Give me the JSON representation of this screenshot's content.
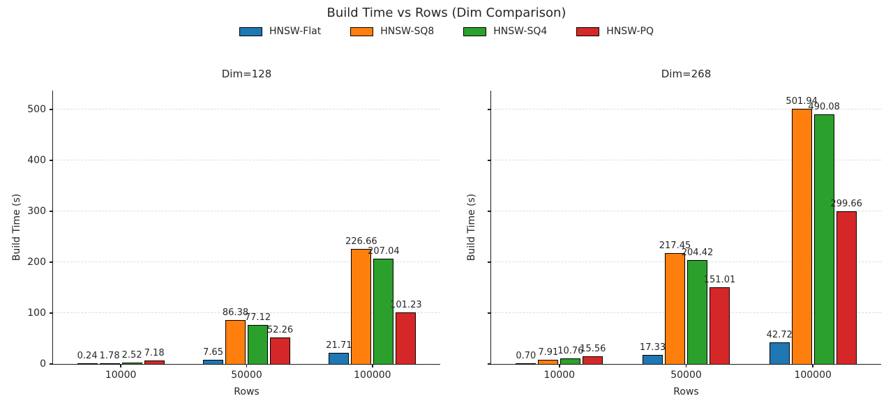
{
  "figure": {
    "title": "Build Time vs Rows (Dim Comparison)",
    "background": "#ffffff"
  },
  "legend": {
    "position": "top-center",
    "entries": [
      {
        "label": "HNSW-Flat",
        "color": "#1f77b4"
      },
      {
        "label": "HNSW-SQ8",
        "color": "#ff7f0e"
      },
      {
        "label": "HNSW-SQ4",
        "color": "#2ca02c"
      },
      {
        "label": "HNSW-PQ",
        "color": "#d62728"
      }
    ]
  },
  "chart_data": [
    {
      "type": "bar",
      "title": "Dim=128",
      "xlabel": "Rows",
      "ylabel": "Build Time (s)",
      "categories": [
        "10000",
        "50000",
        "100000"
      ],
      "series": [
        {
          "name": "HNSW-Flat",
          "color": "#1f77b4",
          "values": [
            0.24,
            7.65,
            21.71
          ]
        },
        {
          "name": "HNSW-SQ8",
          "color": "#ff7f0e",
          "values": [
            1.78,
            86.38,
            226.66
          ]
        },
        {
          "name": "HNSW-SQ4",
          "color": "#2ca02c",
          "values": [
            2.52,
            77.12,
            207.04
          ]
        },
        {
          "name": "HNSW-PQ",
          "color": "#d62728",
          "values": [
            7.18,
            52.26,
            101.23
          ]
        }
      ],
      "yticks": [
        0,
        100,
        200,
        300,
        400,
        500
      ],
      "ylim": [
        0,
        537
      ],
      "grid": "horizontal-dashed",
      "bar_value_labels": true,
      "show_ytick_labels": true
    },
    {
      "type": "bar",
      "title": "Dim=268",
      "xlabel": "Rows",
      "ylabel": "Build Time (s)",
      "categories": [
        "10000",
        "50000",
        "100000"
      ],
      "series": [
        {
          "name": "HNSW-Flat",
          "color": "#1f77b4",
          "values": [
            0.7,
            17.33,
            42.72
          ]
        },
        {
          "name": "HNSW-SQ8",
          "color": "#ff7f0e",
          "values": [
            7.91,
            217.45,
            501.94
          ]
        },
        {
          "name": "HNSW-SQ4",
          "color": "#2ca02c",
          "values": [
            10.76,
            204.42,
            490.08
          ]
        },
        {
          "name": "HNSW-PQ",
          "color": "#d62728",
          "values": [
            15.56,
            151.01,
            299.66
          ]
        }
      ],
      "yticks": [
        0,
        100,
        200,
        300,
        400,
        500
      ],
      "ylim": [
        0,
        537
      ],
      "grid": "horizontal-dashed",
      "bar_value_labels": true,
      "show_ytick_labels": false
    }
  ]
}
